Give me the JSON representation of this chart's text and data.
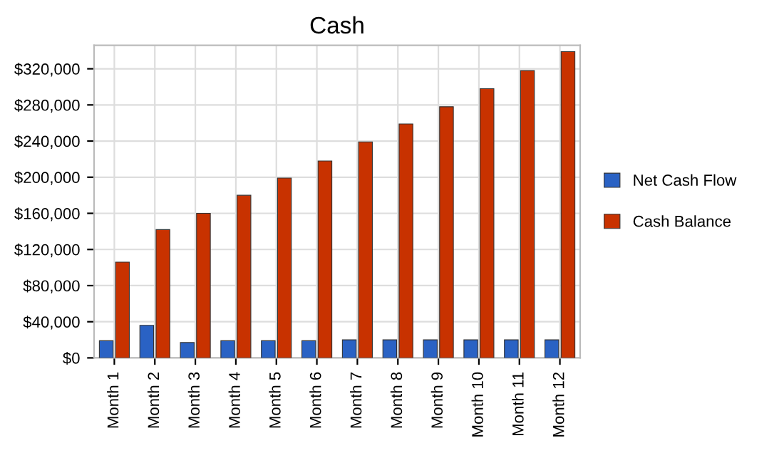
{
  "chart_data": {
    "type": "bar",
    "title": "Cash",
    "categories": [
      "Month 1",
      "Month 2",
      "Month 3",
      "Month 4",
      "Month 5",
      "Month 6",
      "Month 7",
      "Month 8",
      "Month 9",
      "Month 10",
      "Month 11",
      "Month 12"
    ],
    "series": [
      {
        "name": "Net Cash Flow",
        "color": "#2a62c4",
        "values": [
          19000,
          36000,
          17000,
          19000,
          19000,
          19000,
          20000,
          20000,
          20000,
          20000,
          20000,
          20000
        ]
      },
      {
        "name": "Cash Balance",
        "color": "#c83200",
        "values": [
          106000,
          142000,
          160000,
          180000,
          199000,
          218000,
          239000,
          259000,
          278000,
          298000,
          318000,
          339000
        ]
      }
    ],
    "ylim": [
      0,
      346000
    ],
    "yticks": [
      {
        "value": 0,
        "label": "$0"
      },
      {
        "value": 40000,
        "label": "$40,000"
      },
      {
        "value": 80000,
        "label": "$80,000"
      },
      {
        "value": 120000,
        "label": "$120,000"
      },
      {
        "value": 160000,
        "label": "$160,000"
      },
      {
        "value": 200000,
        "label": "$200,000"
      },
      {
        "value": 240000,
        "label": "$240,000"
      },
      {
        "value": 280000,
        "label": "$280,000"
      },
      {
        "value": 320000,
        "label": "$320,000"
      }
    ],
    "grid": true,
    "legend": "right"
  }
}
